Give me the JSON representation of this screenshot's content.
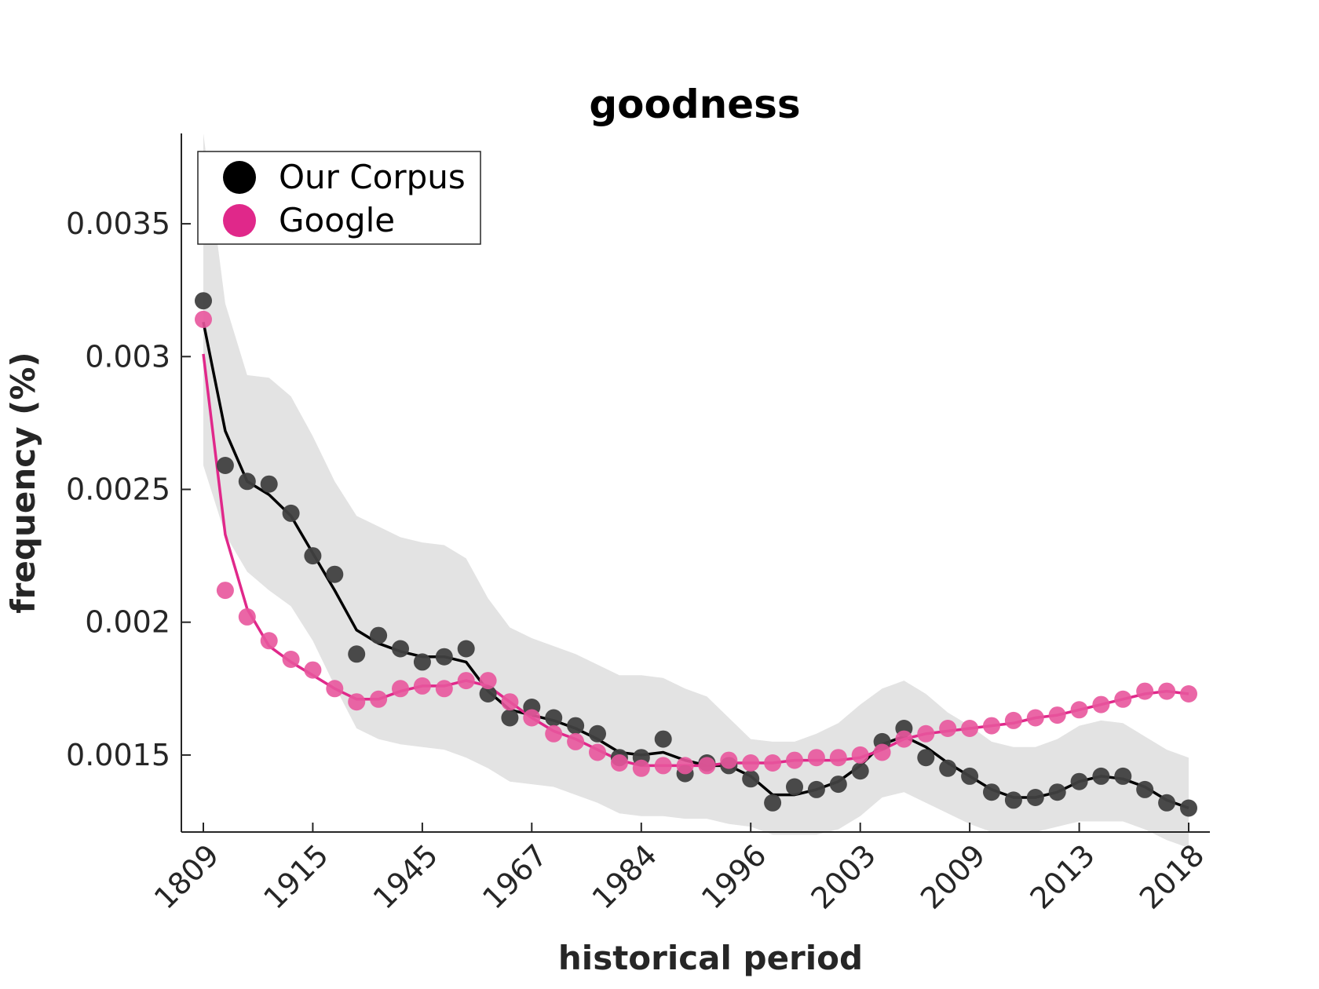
{
  "chart_data": {
    "type": "scatter",
    "title": "goodness",
    "xlabel": "historical period",
    "ylabel": "frequency (%)",
    "x_tick_labels": [
      "1809",
      "1915",
      "1945",
      "1967",
      "1984",
      "1996",
      "2003",
      "2009",
      "2013",
      "2018"
    ],
    "y_ticks": [
      0.0015,
      0.002,
      0.0025,
      0.003,
      0.0035
    ],
    "y_tick_labels": [
      "0.0015",
      "0.002",
      "0.0025",
      "0.003",
      "0.0035"
    ],
    "ylim": [
      0.00121,
      0.00384
    ],
    "x_index_range": [
      0,
      45
    ],
    "grid": false,
    "legend_position": "top-left",
    "colors": {
      "corpus_dot": "#404040",
      "corpus_line": "#000000",
      "google_dot": "#e8559c",
      "google_line": "#e0288a",
      "band": "#e3e3e3",
      "axis": "#262626"
    },
    "series": [
      {
        "name": "Our Corpus",
        "points": [
          0.00321,
          0.00259,
          0.00253,
          0.00252,
          0.00241,
          0.00225,
          0.00218,
          0.00188,
          0.00195,
          0.0019,
          0.00185,
          0.00187,
          0.0019,
          0.00173,
          0.00164,
          0.00168,
          0.00164,
          0.00161,
          0.00158,
          0.00149,
          0.00149,
          0.00156,
          0.00143,
          0.00147,
          0.00146,
          0.00141,
          0.00132,
          0.00138,
          0.00137,
          0.00139,
          0.00144,
          0.00155,
          0.0016,
          0.00149,
          0.00145,
          0.00142,
          0.00136,
          0.00133,
          0.00134,
          0.00136,
          0.0014,
          0.00142,
          0.00142,
          0.00137,
          0.00132,
          0.0013
        ],
        "trend": [
          0.00313,
          0.00272,
          0.00253,
          0.00248,
          0.0024,
          0.00226,
          0.00212,
          0.00197,
          0.00192,
          0.00189,
          0.00187,
          0.00187,
          0.00185,
          0.00174,
          0.00167,
          0.00165,
          0.00163,
          0.0016,
          0.00156,
          0.00151,
          0.0015,
          0.00151,
          0.00148,
          0.00146,
          0.00146,
          0.00142,
          0.00135,
          0.00135,
          0.00137,
          0.0014,
          0.00146,
          0.00154,
          0.00157,
          0.00153,
          0.00147,
          0.00142,
          0.00137,
          0.00134,
          0.00134,
          0.00136,
          0.0014,
          0.00142,
          0.00141,
          0.00138,
          0.00133,
          0.0013
        ],
        "band_upper": [
          0.00384,
          0.0032,
          0.00293,
          0.00292,
          0.00285,
          0.0027,
          0.00253,
          0.0024,
          0.00236,
          0.00232,
          0.0023,
          0.00229,
          0.00224,
          0.00209,
          0.00198,
          0.00194,
          0.00191,
          0.00188,
          0.00184,
          0.0018,
          0.0018,
          0.00179,
          0.00175,
          0.00172,
          0.00164,
          0.00156,
          0.00155,
          0.00155,
          0.00158,
          0.00162,
          0.00169,
          0.00175,
          0.00178,
          0.00173,
          0.00166,
          0.00161,
          0.00155,
          0.00153,
          0.00153,
          0.00156,
          0.00161,
          0.00163,
          0.00162,
          0.00157,
          0.00152,
          0.00149
        ],
        "band_lower": [
          0.00259,
          0.00233,
          0.00219,
          0.00212,
          0.00206,
          0.00193,
          0.00176,
          0.0016,
          0.00156,
          0.00154,
          0.00153,
          0.00152,
          0.00149,
          0.00145,
          0.0014,
          0.00139,
          0.00138,
          0.00135,
          0.00132,
          0.00128,
          0.00127,
          0.00127,
          0.00126,
          0.00126,
          0.00124,
          0.00123,
          0.0012,
          0.0012,
          0.0012,
          0.00122,
          0.00127,
          0.00134,
          0.00136,
          0.00132,
          0.00128,
          0.00124,
          0.00121,
          0.00121,
          0.00121,
          0.00123,
          0.00125,
          0.00125,
          0.00125,
          0.00122,
          0.00118,
          0.00115
        ]
      },
      {
        "name": "Google",
        "points": [
          0.00314,
          0.00212,
          0.00202,
          0.00193,
          0.00186,
          0.00182,
          0.00175,
          0.0017,
          0.00171,
          0.00175,
          0.00176,
          0.00175,
          0.00178,
          0.00178,
          0.0017,
          0.00164,
          0.00158,
          0.00155,
          0.00151,
          0.00147,
          0.00145,
          0.00146,
          0.00146,
          0.00146,
          0.00148,
          0.00147,
          0.00147,
          0.00148,
          0.00149,
          0.00149,
          0.0015,
          0.00151,
          0.00156,
          0.00158,
          0.0016,
          0.0016,
          0.00161,
          0.00163,
          0.00164,
          0.00165,
          0.00167,
          0.00169,
          0.00171,
          0.00174,
          0.00174,
          0.00173
        ],
        "trend": [
          0.00301,
          0.00233,
          0.00205,
          0.00191,
          0.00185,
          0.0018,
          0.00175,
          0.00171,
          0.00171,
          0.00174,
          0.00176,
          0.00176,
          0.00178,
          0.00176,
          0.0017,
          0.00164,
          0.00159,
          0.00156,
          0.00152,
          0.00148,
          0.00146,
          0.00146,
          0.00146,
          0.00146,
          0.00147,
          0.00147,
          0.00147,
          0.00148,
          0.00148,
          0.00148,
          0.00149,
          0.00152,
          0.00156,
          0.00158,
          0.00159,
          0.0016,
          0.00161,
          0.00162,
          0.00164,
          0.00165,
          0.00167,
          0.00169,
          0.00171,
          0.00173,
          0.00174,
          0.00173
        ]
      }
    ]
  }
}
